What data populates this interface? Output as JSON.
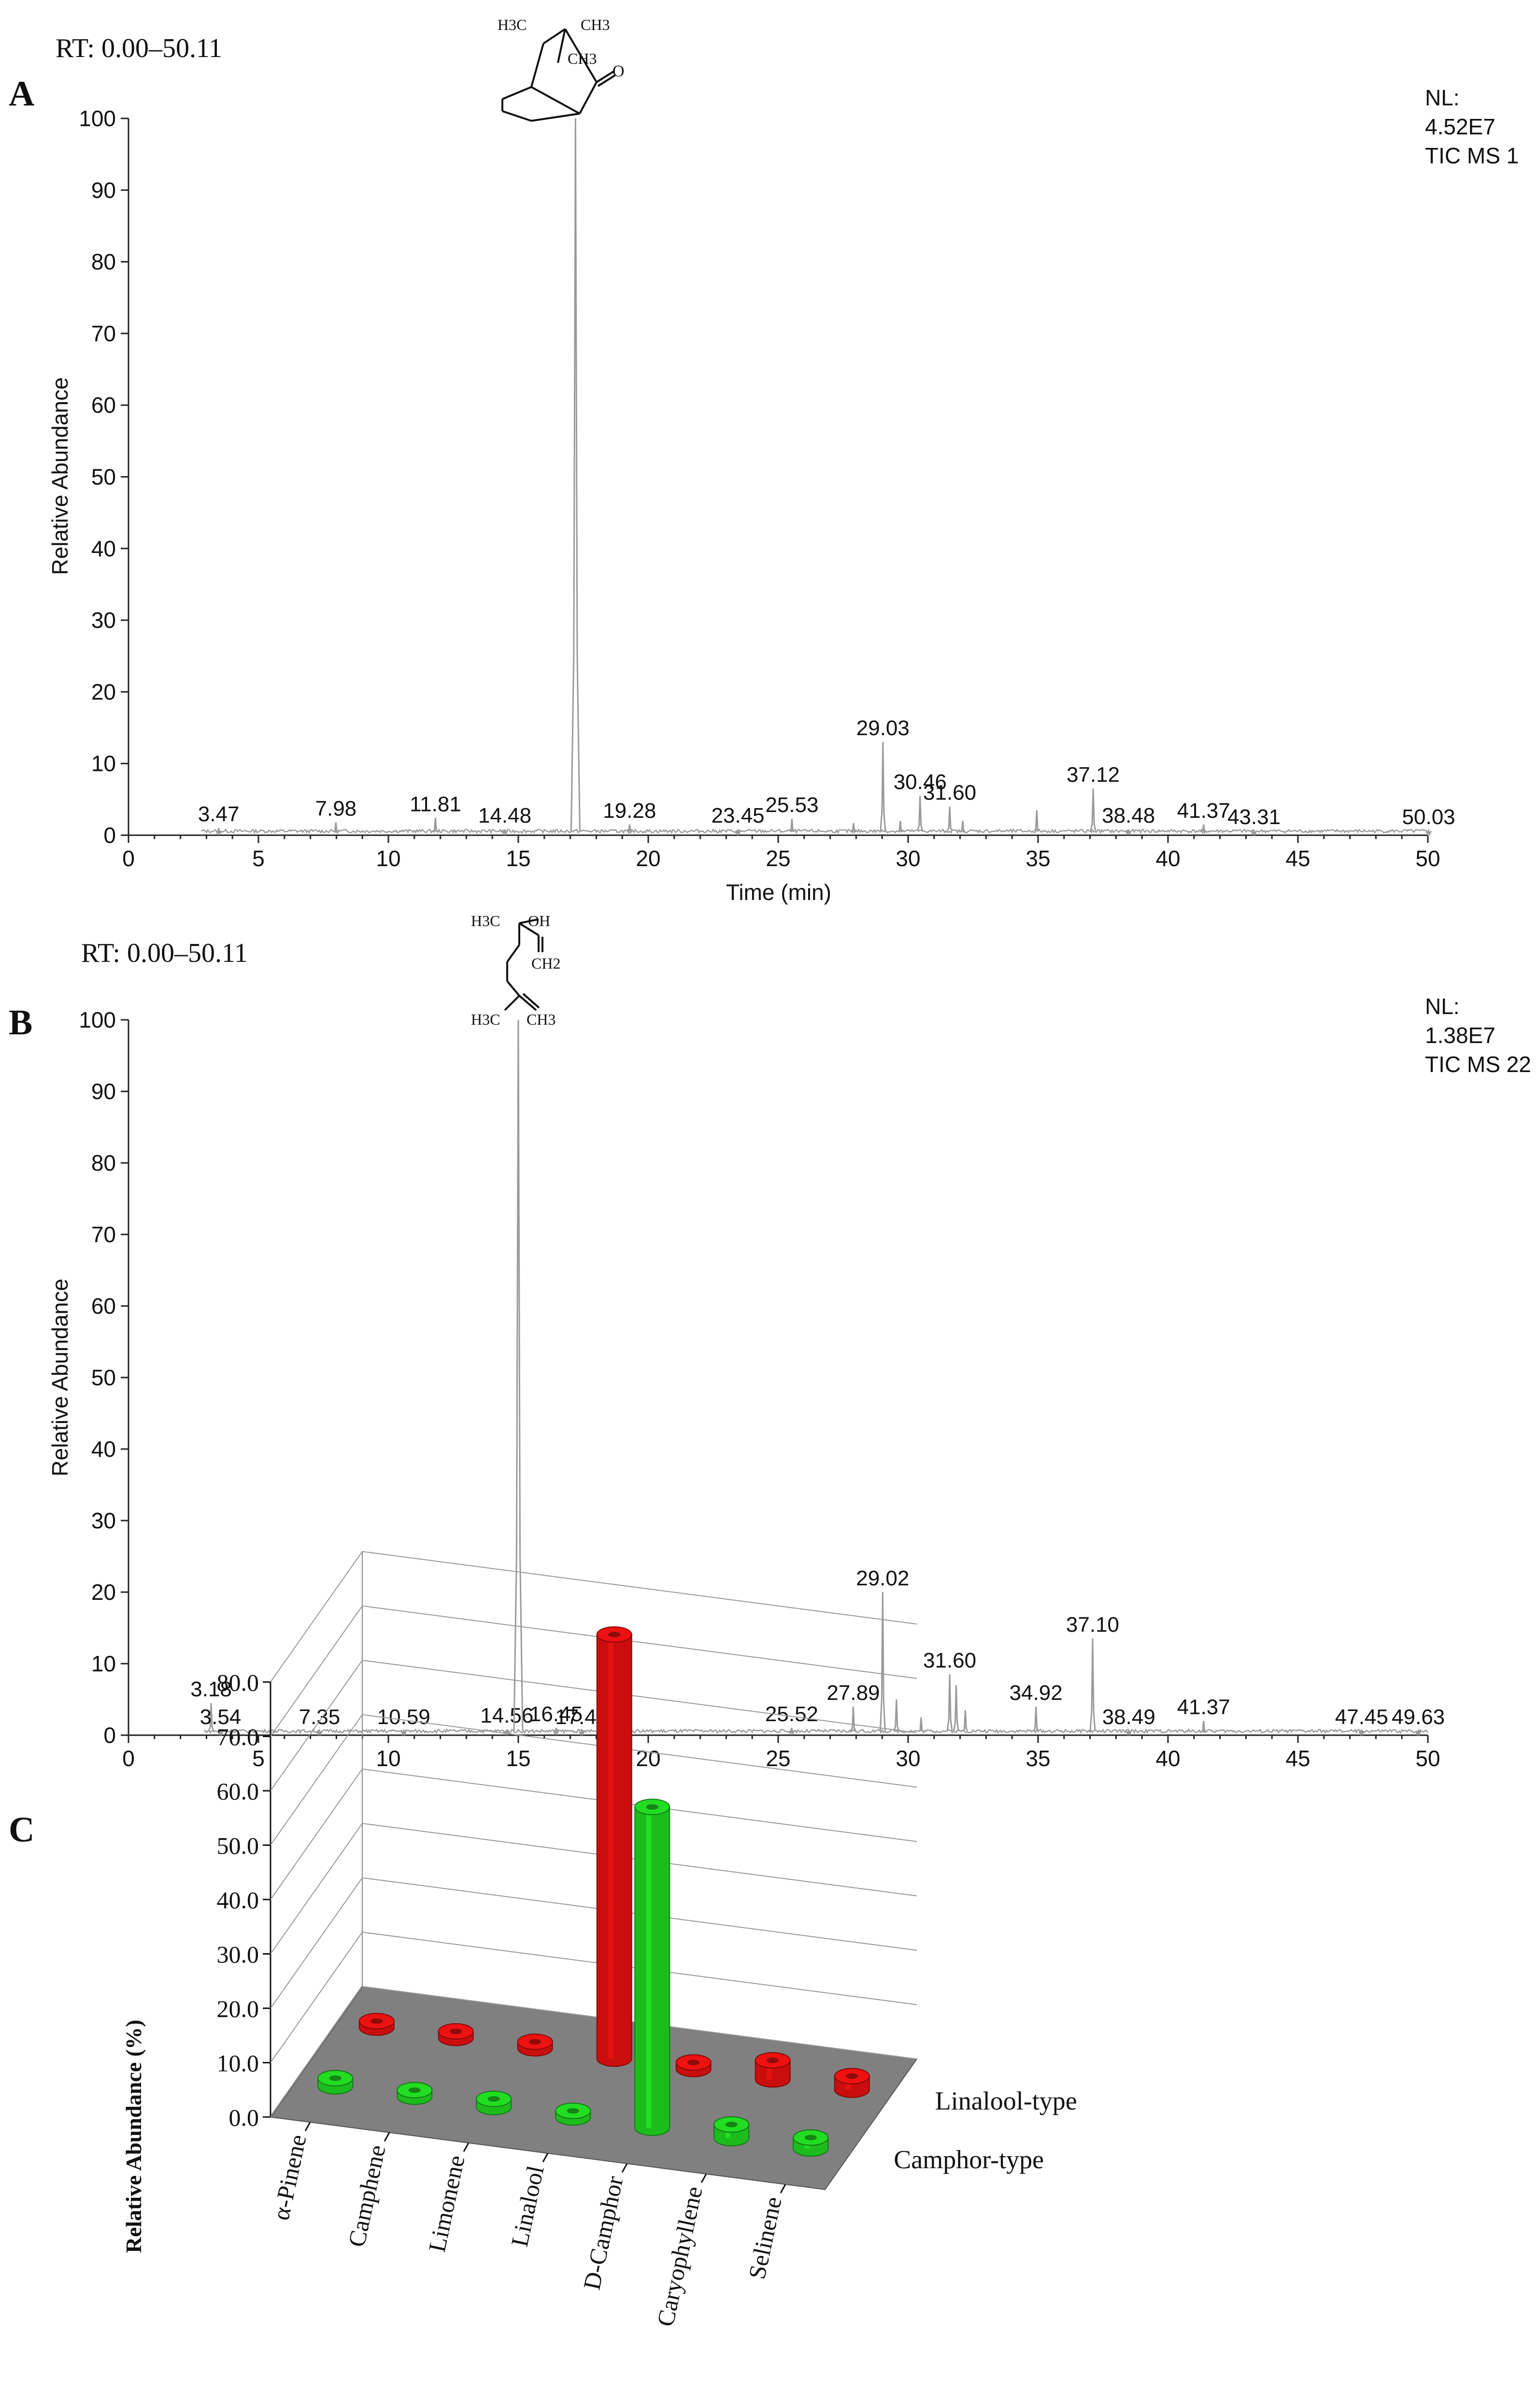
{
  "colors": {
    "trace": "#9a9a9a",
    "axis": "#222222",
    "text": "#111111",
    "linalool_bar": "#ee1111",
    "camphor_bar": "#22dd22",
    "floor": "#808080"
  },
  "icons": [
    "camphor-structure-icon",
    "linalool-structure-icon"
  ],
  "chart_data": [
    {
      "panel": "A",
      "type": "line",
      "rt_label": "RT: 0.00–50.11",
      "nl_label": "NL:",
      "nl_value": "4.52E7",
      "tic_label": "TIC  MS 1",
      "xlabel": "Time (min)",
      "ylabel": "Relative Abundance",
      "xlim": [
        0,
        50
      ],
      "ylim": [
        0,
        100
      ],
      "xticks": [
        0,
        5,
        10,
        15,
        20,
        25,
        30,
        35,
        40,
        45,
        50
      ],
      "yticks": [
        0,
        10,
        20,
        30,
        40,
        50,
        60,
        70,
        80,
        90,
        100
      ],
      "structure_labels": [
        "H3C",
        "CH3",
        "CH3",
        "O"
      ],
      "peaks": [
        {
          "rt": 3.47,
          "height": 1.0,
          "label": "3.47"
        },
        {
          "rt": 7.98,
          "height": 1.8,
          "label": "7.98"
        },
        {
          "rt": 11.81,
          "height": 2.4,
          "label": "11.81"
        },
        {
          "rt": 14.48,
          "height": 0.8,
          "label": "14.48"
        },
        {
          "rt": 17.2,
          "height": 100,
          "label": ""
        },
        {
          "rt": 19.28,
          "height": 1.5,
          "label": "19.28"
        },
        {
          "rt": 23.45,
          "height": 0.8,
          "label": "23.45"
        },
        {
          "rt": 25.53,
          "height": 2.3,
          "label": "25.53"
        },
        {
          "rt": 27.9,
          "height": 1.7,
          "label": ""
        },
        {
          "rt": 29.03,
          "height": 13.0,
          "label": "29.03"
        },
        {
          "rt": 29.7,
          "height": 2.0,
          "label": ""
        },
        {
          "rt": 30.46,
          "height": 5.5,
          "label": "30.46"
        },
        {
          "rt": 31.6,
          "height": 4.0,
          "label": "31.60"
        },
        {
          "rt": 32.1,
          "height": 2.0,
          "label": ""
        },
        {
          "rt": 34.95,
          "height": 3.5,
          "label": ""
        },
        {
          "rt": 37.12,
          "height": 6.5,
          "label": "37.12"
        },
        {
          "rt": 38.48,
          "height": 0.8,
          "label": "38.48"
        },
        {
          "rt": 41.37,
          "height": 1.5,
          "label": "41.37"
        },
        {
          "rt": 43.31,
          "height": 0.6,
          "label": "43.31"
        },
        {
          "rt": 50.03,
          "height": 0.6,
          "label": "50.03"
        }
      ]
    },
    {
      "panel": "B",
      "type": "line",
      "rt_label": "RT: 0.00–50.11",
      "nl_label": "NL:",
      "nl_value": "1.38E7",
      "tic_label": "TIC  MS 22",
      "xlabel": "",
      "ylabel": "Relative Abundance",
      "xlim": [
        0,
        50
      ],
      "ylim": [
        0,
        100
      ],
      "xticks": [
        0,
        5,
        10,
        15,
        20,
        25,
        30,
        35,
        40,
        45,
        50
      ],
      "yticks": [
        0,
        10,
        20,
        30,
        40,
        50,
        60,
        70,
        80,
        90,
        100
      ],
      "structure_labels": [
        "H3C",
        "OH",
        "CH2",
        "H3C",
        "CH3"
      ],
      "peaks": [
        {
          "rt": 3.18,
          "height": 4.5,
          "label": "3.18"
        },
        {
          "rt": 3.54,
          "height": 0.6,
          "label": "3.54"
        },
        {
          "rt": 7.35,
          "height": 0.6,
          "label": "7.35"
        },
        {
          "rt": 10.59,
          "height": 0.6,
          "label": "10.59"
        },
        {
          "rt": 14.56,
          "height": 0.8,
          "label": "14.56"
        },
        {
          "rt": 15.0,
          "height": 100,
          "label": ""
        },
        {
          "rt": 16.45,
          "height": 1.0,
          "label": "16.45"
        },
        {
          "rt": 17.44,
          "height": 0.6,
          "label": "17.44"
        },
        {
          "rt": 25.52,
          "height": 1.0,
          "label": "25.52"
        },
        {
          "rt": 27.89,
          "height": 4.0,
          "label": "27.89"
        },
        {
          "rt": 29.02,
          "height": 20.0,
          "label": "29.02"
        },
        {
          "rt": 29.55,
          "height": 5.0,
          "label": ""
        },
        {
          "rt": 30.5,
          "height": 2.5,
          "label": ""
        },
        {
          "rt": 31.6,
          "height": 8.5,
          "label": "31.60"
        },
        {
          "rt": 31.85,
          "height": 7.0,
          "label": ""
        },
        {
          "rt": 32.2,
          "height": 3.5,
          "label": ""
        },
        {
          "rt": 34.92,
          "height": 4.0,
          "label": "34.92"
        },
        {
          "rt": 37.1,
          "height": 13.5,
          "label": "37.10"
        },
        {
          "rt": 38.49,
          "height": 0.6,
          "label": "38.49"
        },
        {
          "rt": 41.37,
          "height": 2.0,
          "label": "41.37"
        },
        {
          "rt": 47.45,
          "height": 0.6,
          "label": "47.45"
        },
        {
          "rt": 49.63,
          "height": 0.6,
          "label": "49.63"
        }
      ]
    },
    {
      "panel": "C",
      "type": "bar",
      "ylabel": "Relative Abundance (%)",
      "ylim": [
        0,
        80
      ],
      "yticks": [
        "0.0",
        "10.0",
        "20.0",
        "30.0",
        "40.0",
        "50.0",
        "60.0",
        "70.0",
        "80.0"
      ],
      "categories": [
        "α-Pinene",
        "Camphene",
        "Limonene",
        "Linalool",
        "D-Camphor",
        "Caryophyllene",
        "Selinene"
      ],
      "series": [
        {
          "name": "Linalool-type",
          "color": "#ee1111",
          "values": [
            1.2,
            1.0,
            1.0,
            78.0,
            1.0,
            3.5,
            2.5
          ]
        },
        {
          "name": "Camphor-type",
          "color": "#22dd22",
          "values": [
            1.5,
            0.8,
            1.5,
            0.8,
            59.0,
            2.5,
            2.0
          ]
        }
      ]
    }
  ]
}
